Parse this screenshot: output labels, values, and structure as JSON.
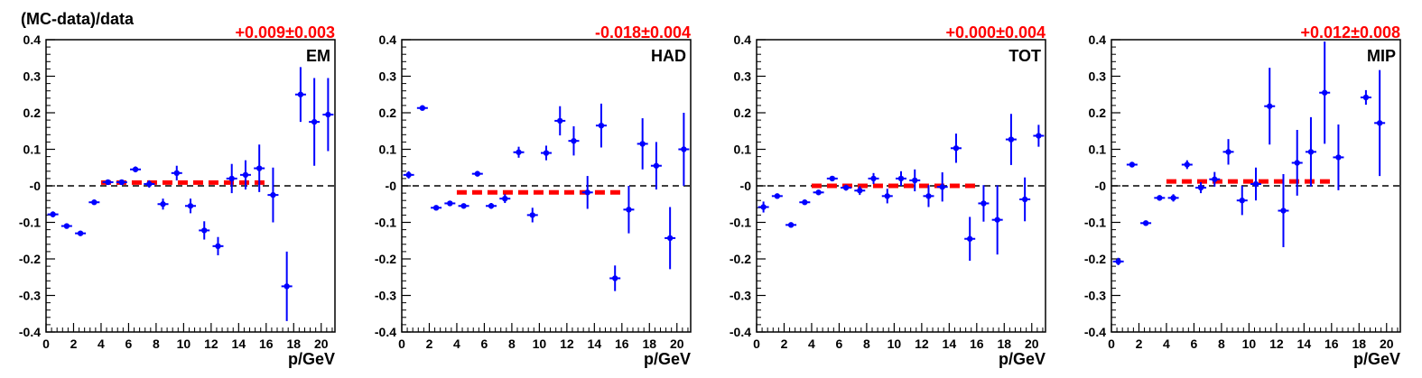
{
  "figure": {
    "ylabel": "(MC-data)/data"
  },
  "chart_data": [
    {
      "type": "scatter",
      "title": "EM",
      "fit_label": "+0.009±0.003",
      "fit": {
        "value": 0.009,
        "x_range": [
          4,
          16
        ],
        "color": "#ff0000"
      },
      "xlabel": "p/GeV",
      "xlim": [
        0,
        21
      ],
      "ylim": [
        -0.4,
        0.4
      ],
      "xticks": [
        0,
        2,
        4,
        6,
        8,
        10,
        12,
        14,
        16,
        18,
        20
      ],
      "yticks": [
        -0.4,
        -0.3,
        -0.2,
        -0.1,
        0,
        0.1,
        0.2,
        0.3,
        0.4
      ],
      "ytick_labels": [
        "-0.4",
        "-0.3",
        "-0.2",
        "-0.1",
        "-0",
        "0.1",
        "0.2",
        "0.3",
        "0.4"
      ],
      "marker_color": "#0000ff",
      "points": [
        {
          "x": 0.5,
          "y": -0.078,
          "ey": 0.008
        },
        {
          "x": 1.5,
          "y": -0.11,
          "ey": 0.006
        },
        {
          "x": 2.5,
          "y": -0.13,
          "ey": 0.006
        },
        {
          "x": 3.5,
          "y": -0.045,
          "ey": 0.006
        },
        {
          "x": 4.5,
          "y": 0.01,
          "ey": 0.006
        },
        {
          "x": 5.5,
          "y": 0.01,
          "ey": 0.006
        },
        {
          "x": 6.5,
          "y": 0.045,
          "ey": 0.008
        },
        {
          "x": 7.5,
          "y": 0.005,
          "ey": 0.01
        },
        {
          "x": 8.5,
          "y": -0.05,
          "ey": 0.015
        },
        {
          "x": 9.5,
          "y": 0.035,
          "ey": 0.02
        },
        {
          "x": 10.5,
          "y": -0.055,
          "ey": 0.02
        },
        {
          "x": 11.5,
          "y": -0.122,
          "ey": 0.025
        },
        {
          "x": 12.5,
          "y": -0.165,
          "ey": 0.025
        },
        {
          "x": 13.5,
          "y": 0.02,
          "ey": 0.04
        },
        {
          "x": 14.5,
          "y": 0.03,
          "ey": 0.04
        },
        {
          "x": 15.5,
          "y": 0.048,
          "ey": 0.065
        },
        {
          "x": 16.5,
          "y": -0.025,
          "ey": 0.075
        },
        {
          "x": 17.5,
          "y": -0.275,
          "ey": 0.095
        },
        {
          "x": 18.5,
          "y": 0.25,
          "ey": 0.075
        },
        {
          "x": 19.5,
          "y": 0.175,
          "ey": 0.12
        },
        {
          "x": 20.5,
          "y": 0.195,
          "ey": 0.1
        }
      ]
    },
    {
      "type": "scatter",
      "title": "HAD",
      "fit_label": "-0.018±0.004",
      "fit": {
        "value": -0.018,
        "x_range": [
          4,
          16
        ],
        "color": "#ff0000"
      },
      "xlabel": "p/GeV",
      "xlim": [
        0,
        21
      ],
      "ylim": [
        -0.4,
        0.4
      ],
      "xticks": [
        0,
        2,
        4,
        6,
        8,
        10,
        12,
        14,
        16,
        18,
        20
      ],
      "yticks": [
        -0.4,
        -0.3,
        -0.2,
        -0.1,
        0,
        0.1,
        0.2,
        0.3,
        0.4
      ],
      "ytick_labels": [
        "-0.4",
        "-0.3",
        "-0.2",
        "-0.1",
        "-0",
        "0.1",
        "0.2",
        "0.3",
        "0.4"
      ],
      "marker_color": "#0000ff",
      "points": [
        {
          "x": 0.5,
          "y": 0.03,
          "ey": 0.01
        },
        {
          "x": 1.5,
          "y": 0.213,
          "ey": 0.005
        },
        {
          "x": 2.5,
          "y": -0.06,
          "ey": 0.005
        },
        {
          "x": 3.5,
          "y": -0.048,
          "ey": 0.005
        },
        {
          "x": 4.5,
          "y": -0.055,
          "ey": 0.005
        },
        {
          "x": 5.5,
          "y": 0.033,
          "ey": 0.006
        },
        {
          "x": 6.5,
          "y": -0.055,
          "ey": 0.008
        },
        {
          "x": 7.5,
          "y": -0.035,
          "ey": 0.012
        },
        {
          "x": 8.5,
          "y": 0.092,
          "ey": 0.015
        },
        {
          "x": 9.5,
          "y": -0.08,
          "ey": 0.02
        },
        {
          "x": 10.5,
          "y": 0.09,
          "ey": 0.02
        },
        {
          "x": 11.5,
          "y": 0.178,
          "ey": 0.04
        },
        {
          "x": 12.5,
          "y": 0.123,
          "ey": 0.04
        },
        {
          "x": 13.5,
          "y": -0.018,
          "ey": 0.045
        },
        {
          "x": 14.5,
          "y": 0.165,
          "ey": 0.06
        },
        {
          "x": 15.5,
          "y": -0.253,
          "ey": 0.035
        },
        {
          "x": 16.5,
          "y": -0.065,
          "ey": 0.065
        },
        {
          "x": 17.5,
          "y": 0.115,
          "ey": 0.07
        },
        {
          "x": 18.5,
          "y": 0.055,
          "ey": 0.065
        },
        {
          "x": 19.5,
          "y": -0.143,
          "ey": 0.085
        },
        {
          "x": 20.5,
          "y": 0.1,
          "ey": 0.1
        }
      ]
    },
    {
      "type": "scatter",
      "title": "TOT",
      "fit_label": "+0.000±0.004",
      "fit": {
        "value": 0.0,
        "x_range": [
          4,
          16
        ],
        "color": "#ff0000"
      },
      "xlabel": "p/GeV",
      "xlim": [
        0,
        21
      ],
      "ylim": [
        -0.4,
        0.4
      ],
      "xticks": [
        0,
        2,
        4,
        6,
        8,
        10,
        12,
        14,
        16,
        18,
        20
      ],
      "yticks": [
        -0.4,
        -0.3,
        -0.2,
        -0.1,
        0,
        0.1,
        0.2,
        0.3,
        0.4
      ],
      "ytick_labels": [
        "-0.4",
        "-0.3",
        "-0.2",
        "-0.1",
        "-0",
        "0.1",
        "0.2",
        "0.3",
        "0.4"
      ],
      "marker_color": "#0000ff",
      "points": [
        {
          "x": 0.5,
          "y": -0.058,
          "ey": 0.015
        },
        {
          "x": 1.5,
          "y": -0.028,
          "ey": 0.006
        },
        {
          "x": 2.5,
          "y": -0.107,
          "ey": 0.006
        },
        {
          "x": 3.5,
          "y": -0.045,
          "ey": 0.006
        },
        {
          "x": 4.5,
          "y": -0.018,
          "ey": 0.006
        },
        {
          "x": 5.5,
          "y": 0.02,
          "ey": 0.006
        },
        {
          "x": 6.5,
          "y": -0.005,
          "ey": 0.008
        },
        {
          "x": 7.5,
          "y": -0.013,
          "ey": 0.012
        },
        {
          "x": 8.5,
          "y": 0.02,
          "ey": 0.015
        },
        {
          "x": 9.5,
          "y": -0.028,
          "ey": 0.02
        },
        {
          "x": 10.5,
          "y": 0.02,
          "ey": 0.02
        },
        {
          "x": 11.5,
          "y": 0.015,
          "ey": 0.03
        },
        {
          "x": 12.5,
          "y": -0.028,
          "ey": 0.03
        },
        {
          "x": 13.5,
          "y": -0.003,
          "ey": 0.04
        },
        {
          "x": 14.5,
          "y": 0.103,
          "ey": 0.04
        },
        {
          "x": 15.5,
          "y": -0.145,
          "ey": 0.06
        },
        {
          "x": 16.5,
          "y": -0.048,
          "ey": 0.05
        },
        {
          "x": 17.5,
          "y": -0.093,
          "ey": 0.095
        },
        {
          "x": 18.5,
          "y": 0.127,
          "ey": 0.07
        },
        {
          "x": 19.5,
          "y": -0.037,
          "ey": 0.06
        },
        {
          "x": 20.5,
          "y": 0.137,
          "ey": 0.03
        }
      ]
    },
    {
      "type": "scatter",
      "title": "MIP",
      "fit_label": "+0.012±0.008",
      "fit": {
        "value": 0.012,
        "x_range": [
          4,
          16
        ],
        "color": "#ff0000"
      },
      "xlabel": "p/GeV",
      "xlim": [
        0,
        21
      ],
      "ylim": [
        -0.4,
        0.4
      ],
      "xticks": [
        0,
        2,
        4,
        6,
        8,
        10,
        12,
        14,
        16,
        18,
        20
      ],
      "yticks": [
        -0.4,
        -0.3,
        -0.2,
        -0.1,
        0,
        0.1,
        0.2,
        0.3,
        0.4
      ],
      "ytick_labels": [
        "-0.4",
        "-0.3",
        "-0.2",
        "-0.1",
        "-0",
        "0.1",
        "0.2",
        "0.3",
        "0.4"
      ],
      "marker_color": "#0000ff",
      "points": [
        {
          "x": 0.5,
          "y": -0.207,
          "ey": 0.01
        },
        {
          "x": 1.5,
          "y": 0.058,
          "ey": 0.006
        },
        {
          "x": 2.5,
          "y": -0.102,
          "ey": 0.006
        },
        {
          "x": 3.5,
          "y": -0.033,
          "ey": 0.006
        },
        {
          "x": 4.5,
          "y": -0.033,
          "ey": 0.01
        },
        {
          "x": 5.5,
          "y": 0.058,
          "ey": 0.012
        },
        {
          "x": 6.5,
          "y": -0.005,
          "ey": 0.015
        },
        {
          "x": 7.5,
          "y": 0.018,
          "ey": 0.02
        },
        {
          "x": 8.5,
          "y": 0.093,
          "ey": 0.035
        },
        {
          "x": 9.5,
          "y": -0.04,
          "ey": 0.04
        },
        {
          "x": 10.5,
          "y": 0.005,
          "ey": 0.045
        },
        {
          "x": 11.5,
          "y": 0.218,
          "ey": 0.105
        },
        {
          "x": 12.5,
          "y": -0.068,
          "ey": 0.1
        },
        {
          "x": 13.5,
          "y": 0.063,
          "ey": 0.09
        },
        {
          "x": 14.5,
          "y": 0.093,
          "ey": 0.095
        },
        {
          "x": 15.5,
          "y": 0.255,
          "ey": 0.14
        },
        {
          "x": 16.5,
          "y": 0.078,
          "ey": 0.09
        },
        {
          "x": 18.5,
          "y": 0.242,
          "ey": 0.02
        },
        {
          "x": 19.5,
          "y": 0.172,
          "ey": 0.145
        }
      ]
    }
  ]
}
